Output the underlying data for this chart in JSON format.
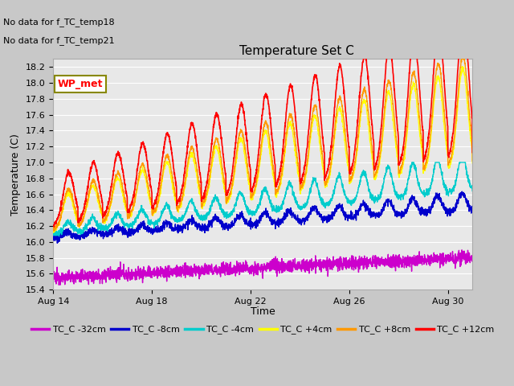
{
  "title": "Temperature Set C",
  "ylabel": "Temperature (C)",
  "xlabel": "Time",
  "ylim": [
    15.4,
    18.3
  ],
  "annotation_lines": [
    "No data for f_TC_temp18",
    "No data for f_TC_temp21"
  ],
  "wp_met_label": "WP_met",
  "legend_labels": [
    "TC_C -32cm",
    "TC_C -8cm",
    "TC_C -4cm",
    "TC_C +4cm",
    "TC_C +8cm",
    "TC_C +12cm"
  ],
  "colors": {
    "TC_C -32cm": "#cc00cc",
    "TC_C -8cm": "#0000cc",
    "TC_C -4cm": "#00cccc",
    "TC_C +4cm": "#ffff00",
    "TC_C +8cm": "#ff9900",
    "TC_C +12cm": "#ff0000"
  },
  "xtick_labels": [
    "Aug 14",
    "Aug 18",
    "Aug 22",
    "Aug 26",
    "Aug 30"
  ],
  "xtick_positions": [
    0,
    4,
    8,
    12,
    16
  ],
  "background_color": "#e8e8e8",
  "grid_color": "#ffffff",
  "yticks": [
    15.4,
    15.6,
    15.8,
    16.0,
    16.2,
    16.4,
    16.6,
    16.8,
    17.0,
    17.2,
    17.4,
    17.6,
    17.8,
    18.0,
    18.2
  ]
}
